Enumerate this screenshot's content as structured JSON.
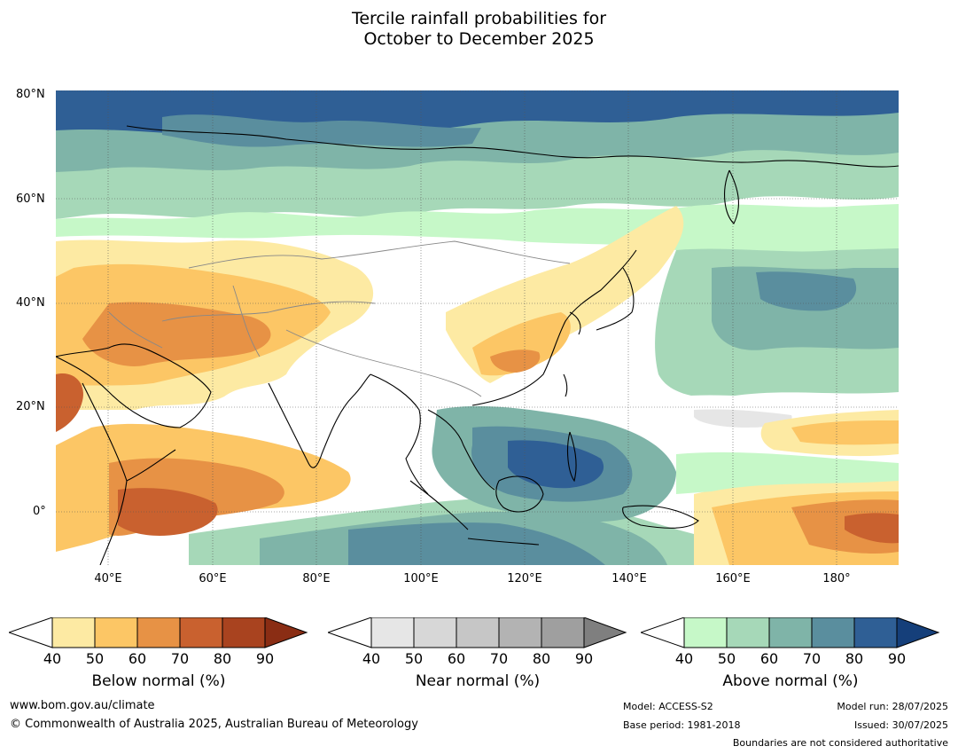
{
  "title": {
    "line1": "Tercile rainfall probabilities for",
    "line2": "October to December 2025"
  },
  "axes": {
    "lat_ticks": [
      "80°N",
      "60°N",
      "40°N",
      "20°N",
      "0°"
    ],
    "lon_ticks": [
      "40°E",
      "60°E",
      "80°E",
      "100°E",
      "120°E",
      "140°E",
      "160°E",
      "180°"
    ]
  },
  "colorbars": [
    {
      "title": "Below normal (%)",
      "ticks": [
        "40",
        "50",
        "60",
        "70",
        "80",
        "90"
      ],
      "colors": [
        "#ffffff",
        "#fdeaa3",
        "#fcc665",
        "#e79245",
        "#c9612f",
        "#a9431f",
        "#8a2d14"
      ]
    },
    {
      "title": "Near normal (%)",
      "ticks": [
        "40",
        "50",
        "60",
        "70",
        "80",
        "90"
      ],
      "colors": [
        "#ffffff",
        "#e6e6e6",
        "#d7d7d7",
        "#c6c6c6",
        "#b3b3b3",
        "#9f9f9f",
        "#7f7f7f"
      ]
    },
    {
      "title": "Above normal (%)",
      "ticks": [
        "40",
        "50",
        "60",
        "70",
        "80",
        "90"
      ],
      "colors": [
        "#ffffff",
        "#c6f8c8",
        "#a6d8b8",
        "#7fb4a8",
        "#5a8e9e",
        "#2f5f95",
        "#153f7a"
      ]
    }
  ],
  "footer": {
    "website": "www.bom.gov.au/climate",
    "copyright": "© Commonwealth of Australia 2025, Australian Bureau of Meteorology",
    "model": "Model: ACCESS-S2",
    "base_period": "Base period: 1981-2018",
    "model_run": "Model run: 28/07/2025",
    "issued": "Issued: 30/07/2025",
    "boundaries_note": "Boundaries are not considered authoritative"
  }
}
